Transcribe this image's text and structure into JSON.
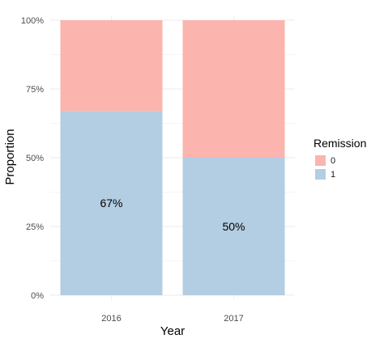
{
  "chart_data": {
    "type": "bar",
    "stacked": true,
    "title": "",
    "xlabel": "Year",
    "ylabel": "Proportion",
    "categories": [
      "2016",
      "2017"
    ],
    "series": [
      {
        "name": "1",
        "values": [
          0.67,
          0.5
        ],
        "color": "#b3cde3"
      },
      {
        "name": "0",
        "values": [
          0.33,
          0.5
        ],
        "color": "#fbb4ae"
      }
    ],
    "y_ticks": [
      {
        "value": 0,
        "label": "0%"
      },
      {
        "value": 0.25,
        "label": "25%"
      },
      {
        "value": 0.5,
        "label": "50%"
      },
      {
        "value": 0.75,
        "label": "75%"
      },
      {
        "value": 1,
        "label": "100%"
      }
    ],
    "ylim": [
      0,
      1
    ],
    "data_labels": [
      {
        "category": "2016",
        "series": "1",
        "text": "67%"
      },
      {
        "category": "2017",
        "series": "1",
        "text": "50%"
      }
    ],
    "legend": {
      "title": "Remission",
      "position": "right",
      "items": [
        {
          "label": "0",
          "color": "#fbb4ae"
        },
        {
          "label": "1",
          "color": "#b3cde3"
        }
      ]
    },
    "grid": true,
    "grid_color": "#ebebeb"
  }
}
